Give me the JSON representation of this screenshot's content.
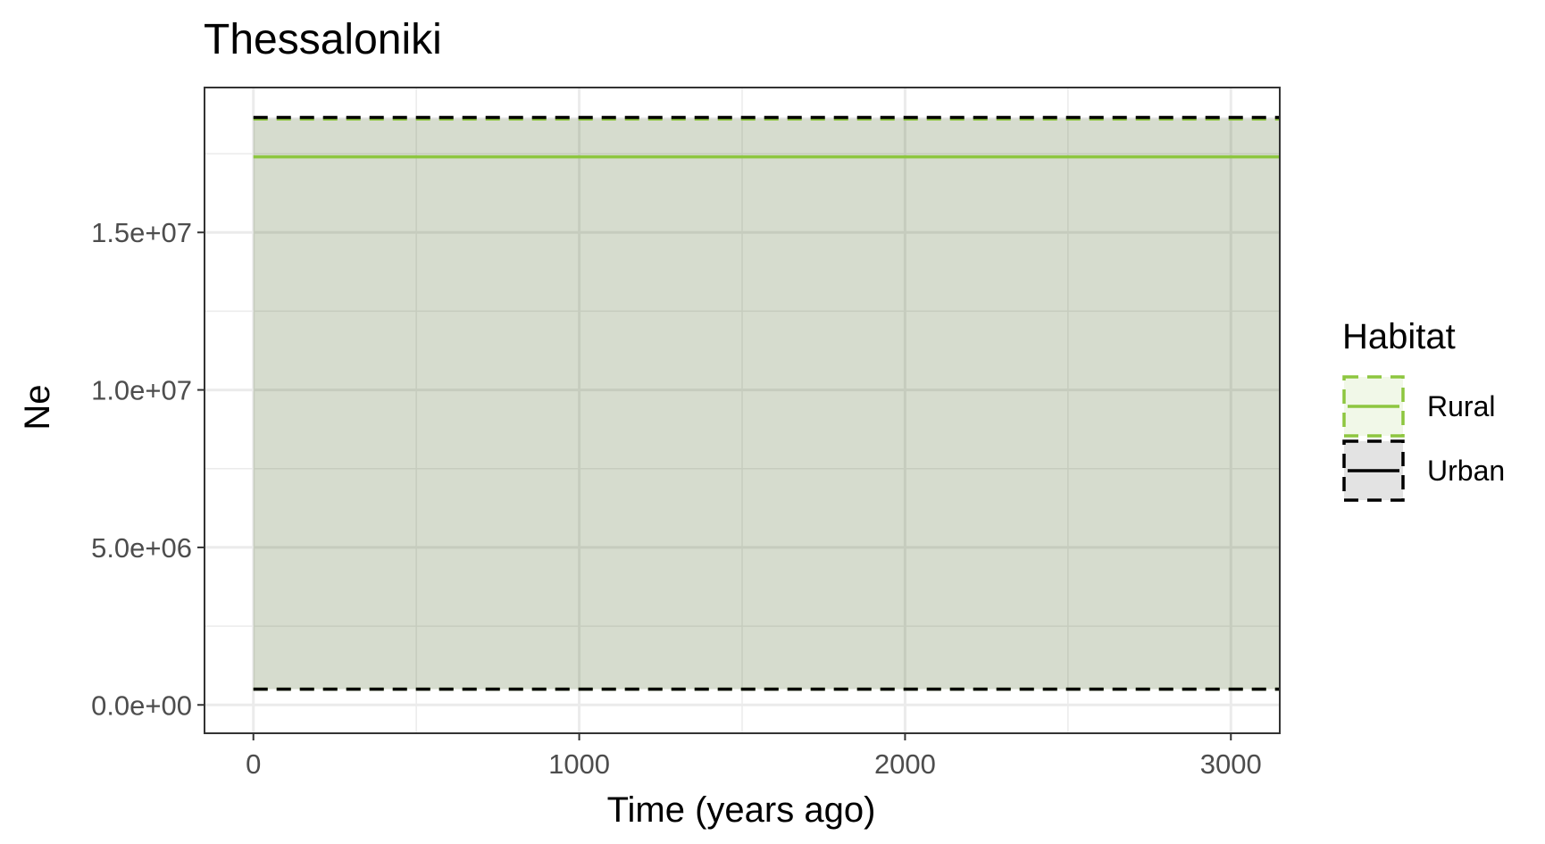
{
  "chart_data": {
    "type": "line",
    "title": "Thessaloniki",
    "xlabel": "Time (years ago)",
    "ylabel": "Ne",
    "xlim": [
      -150,
      3150
    ],
    "ylim": [
      -900000,
      19600000
    ],
    "x_ticks": [
      0,
      1000,
      2000,
      3000
    ],
    "x_tick_labels": [
      "0",
      "1000",
      "2000",
      "3000"
    ],
    "x_minor_ticks": [
      500,
      1500,
      2500
    ],
    "y_ticks": [
      0,
      5000000,
      10000000,
      15000000
    ],
    "y_tick_labels": [
      "0.0e+00",
      "5.0e+06",
      "1.0e+07",
      "1.5e+07"
    ],
    "y_minor_ticks": [
      2500000,
      7500000,
      12500000,
      17500000
    ],
    "grid": true,
    "legend": {
      "title": "Habitat",
      "position": "right",
      "entries": [
        "Rural",
        "Urban"
      ]
    },
    "series": [
      {
        "name": "Rural",
        "color": "#8dc63f",
        "fill": "rgba(141,198,63,0.12)",
        "x": [
          0,
          3150
        ],
        "median": [
          17400000,
          17400000
        ],
        "lower": [
          500000,
          500000
        ],
        "upper": [
          18600000,
          18600000
        ]
      },
      {
        "name": "Urban",
        "color": "#000000",
        "fill": "rgba(0,0,0,0.11)",
        "x": [
          0,
          3150
        ],
        "median": null,
        "lower": [
          500000,
          500000
        ],
        "upper": [
          18650000,
          18650000
        ]
      }
    ]
  }
}
